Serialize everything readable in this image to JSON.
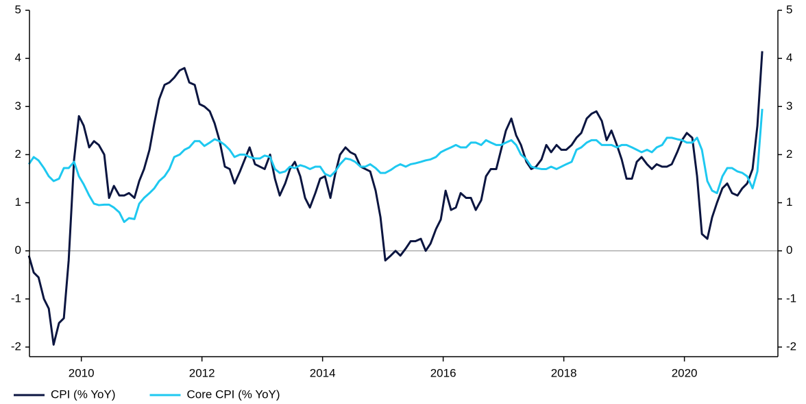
{
  "chart_data": {
    "type": "line",
    "x": [
      2009.13,
      2009.21,
      2009.29,
      2009.38,
      2009.46,
      2009.54,
      2009.63,
      2009.71,
      2009.79,
      2009.88,
      2009.96,
      2010.04,
      2010.13,
      2010.21,
      2010.29,
      2010.38,
      2010.46,
      2010.54,
      2010.63,
      2010.71,
      2010.79,
      2010.88,
      2010.96,
      2011.04,
      2011.13,
      2011.21,
      2011.29,
      2011.38,
      2011.46,
      2011.54,
      2011.63,
      2011.71,
      2011.79,
      2011.88,
      2011.96,
      2012.04,
      2012.13,
      2012.21,
      2012.29,
      2012.38,
      2012.46,
      2012.54,
      2012.63,
      2012.71,
      2012.79,
      2012.88,
      2012.96,
      2013.04,
      2013.13,
      2013.21,
      2013.29,
      2013.38,
      2013.46,
      2013.54,
      2013.63,
      2013.71,
      2013.79,
      2013.88,
      2013.96,
      2014.04,
      2014.13,
      2014.21,
      2014.29,
      2014.38,
      2014.46,
      2014.54,
      2014.63,
      2014.71,
      2014.79,
      2014.88,
      2014.96,
      2015.04,
      2015.13,
      2015.21,
      2015.29,
      2015.38,
      2015.46,
      2015.54,
      2015.63,
      2015.71,
      2015.79,
      2015.88,
      2015.96,
      2016.04,
      2016.13,
      2016.21,
      2016.29,
      2016.38,
      2016.46,
      2016.54,
      2016.63,
      2016.71,
      2016.79,
      2016.88,
      2016.96,
      2017.04,
      2017.13,
      2017.21,
      2017.29,
      2017.38,
      2017.46,
      2017.54,
      2017.63,
      2017.71,
      2017.79,
      2017.88,
      2017.96,
      2018.04,
      2018.13,
      2018.21,
      2018.29,
      2018.38,
      2018.46,
      2018.54,
      2018.63,
      2018.71,
      2018.79,
      2018.88,
      2018.96,
      2019.04,
      2019.13,
      2019.21,
      2019.29,
      2019.38,
      2019.46,
      2019.54,
      2019.63,
      2019.71,
      2019.79,
      2019.88,
      2019.96,
      2020.04,
      2020.13,
      2020.21,
      2020.29,
      2020.38,
      2020.46,
      2020.54,
      2020.63,
      2020.71,
      2020.79,
      2020.88,
      2020.96,
      2021.04,
      2021.13,
      2021.21,
      2021.29
    ],
    "series": [
      {
        "name": "CPI (% YoY)",
        "color": "#0b1540",
        "values": [
          -0.1,
          -0.45,
          -0.55,
          -1.0,
          -1.2,
          -1.95,
          -1.5,
          -1.4,
          -0.2,
          1.9,
          2.8,
          2.6,
          2.15,
          2.28,
          2.2,
          2.0,
          1.1,
          1.35,
          1.15,
          1.15,
          1.2,
          1.1,
          1.45,
          1.7,
          2.1,
          2.65,
          3.15,
          3.45,
          3.5,
          3.6,
          3.75,
          3.8,
          3.5,
          3.45,
          3.05,
          3.0,
          2.9,
          2.65,
          2.3,
          1.75,
          1.7,
          1.4,
          1.65,
          1.9,
          2.15,
          1.8,
          1.75,
          1.7,
          2.0,
          1.5,
          1.15,
          1.4,
          1.7,
          1.85,
          1.55,
          1.1,
          0.9,
          1.2,
          1.5,
          1.55,
          1.1,
          1.6,
          2.0,
          2.15,
          2.05,
          2.0,
          1.75,
          1.7,
          1.65,
          1.25,
          0.7,
          -0.2,
          -0.1,
          0.0,
          -0.1,
          0.05,
          0.2,
          0.2,
          0.25,
          0.0,
          0.15,
          0.45,
          0.65,
          1.25,
          0.85,
          0.9,
          1.2,
          1.1,
          1.1,
          0.85,
          1.05,
          1.55,
          1.7,
          1.7,
          2.1,
          2.5,
          2.75,
          2.4,
          2.2,
          1.85,
          1.7,
          1.75,
          1.9,
          2.2,
          2.05,
          2.2,
          2.1,
          2.1,
          2.2,
          2.35,
          2.45,
          2.75,
          2.85,
          2.9,
          2.7,
          2.3,
          2.5,
          2.2,
          1.9,
          1.5,
          1.5,
          1.85,
          1.95,
          1.8,
          1.7,
          1.8,
          1.75,
          1.75,
          1.8,
          2.05,
          2.3,
          2.45,
          2.35,
          1.55,
          0.35,
          0.25,
          0.7,
          1.0,
          1.3,
          1.4,
          1.2,
          1.15,
          1.3,
          1.4,
          1.7,
          2.6,
          4.15
        ]
      },
      {
        "name": "Core CPI (% YoY)",
        "color": "#1ec8f0",
        "values": [
          1.8,
          1.95,
          1.88,
          1.72,
          1.55,
          1.45,
          1.5,
          1.72,
          1.72,
          1.85,
          1.55,
          1.38,
          1.15,
          0.98,
          0.95,
          0.96,
          0.96,
          0.9,
          0.8,
          0.6,
          0.68,
          0.66,
          0.98,
          1.1,
          1.2,
          1.3,
          1.45,
          1.55,
          1.7,
          1.95,
          2.0,
          2.1,
          2.15,
          2.28,
          2.28,
          2.18,
          2.25,
          2.32,
          2.28,
          2.2,
          2.1,
          1.95,
          2.0,
          2.0,
          1.95,
          1.92,
          1.92,
          1.98,
          1.95,
          1.7,
          1.62,
          1.65,
          1.75,
          1.72,
          1.78,
          1.75,
          1.7,
          1.75,
          1.75,
          1.6,
          1.55,
          1.65,
          1.8,
          1.92,
          1.9,
          1.85,
          1.75,
          1.75,
          1.8,
          1.72,
          1.62,
          1.62,
          1.68,
          1.75,
          1.8,
          1.75,
          1.8,
          1.82,
          1.85,
          1.88,
          1.9,
          1.95,
          2.05,
          2.1,
          2.15,
          2.2,
          2.15,
          2.15,
          2.25,
          2.25,
          2.2,
          2.3,
          2.25,
          2.2,
          2.2,
          2.25,
          2.3,
          2.2,
          2.0,
          1.9,
          1.75,
          1.72,
          1.7,
          1.7,
          1.75,
          1.7,
          1.75,
          1.8,
          1.85,
          2.1,
          2.15,
          2.25,
          2.3,
          2.3,
          2.2,
          2.2,
          2.2,
          2.15,
          2.2,
          2.2,
          2.15,
          2.1,
          2.05,
          2.1,
          2.05,
          2.15,
          2.2,
          2.35,
          2.35,
          2.32,
          2.3,
          2.25,
          2.25,
          2.35,
          2.1,
          1.45,
          1.25,
          1.2,
          1.55,
          1.72,
          1.72,
          1.65,
          1.62,
          1.55,
          1.3,
          1.65,
          2.95
        ]
      }
    ],
    "xlim": [
      2009.14,
      2021.55
    ],
    "xticks": [
      2010,
      2012,
      2014,
      2016,
      2018,
      2020
    ],
    "ylim": [
      -2.2,
      5
    ],
    "yticks": [
      -2,
      -1,
      0,
      1,
      2,
      3,
      4,
      5
    ],
    "y2lim": [
      -2.2,
      5
    ],
    "y2ticks": [
      -2,
      -1,
      0,
      1,
      2,
      3,
      4,
      5
    ],
    "hline": 0,
    "grid": false,
    "legend": "bottom-left"
  }
}
